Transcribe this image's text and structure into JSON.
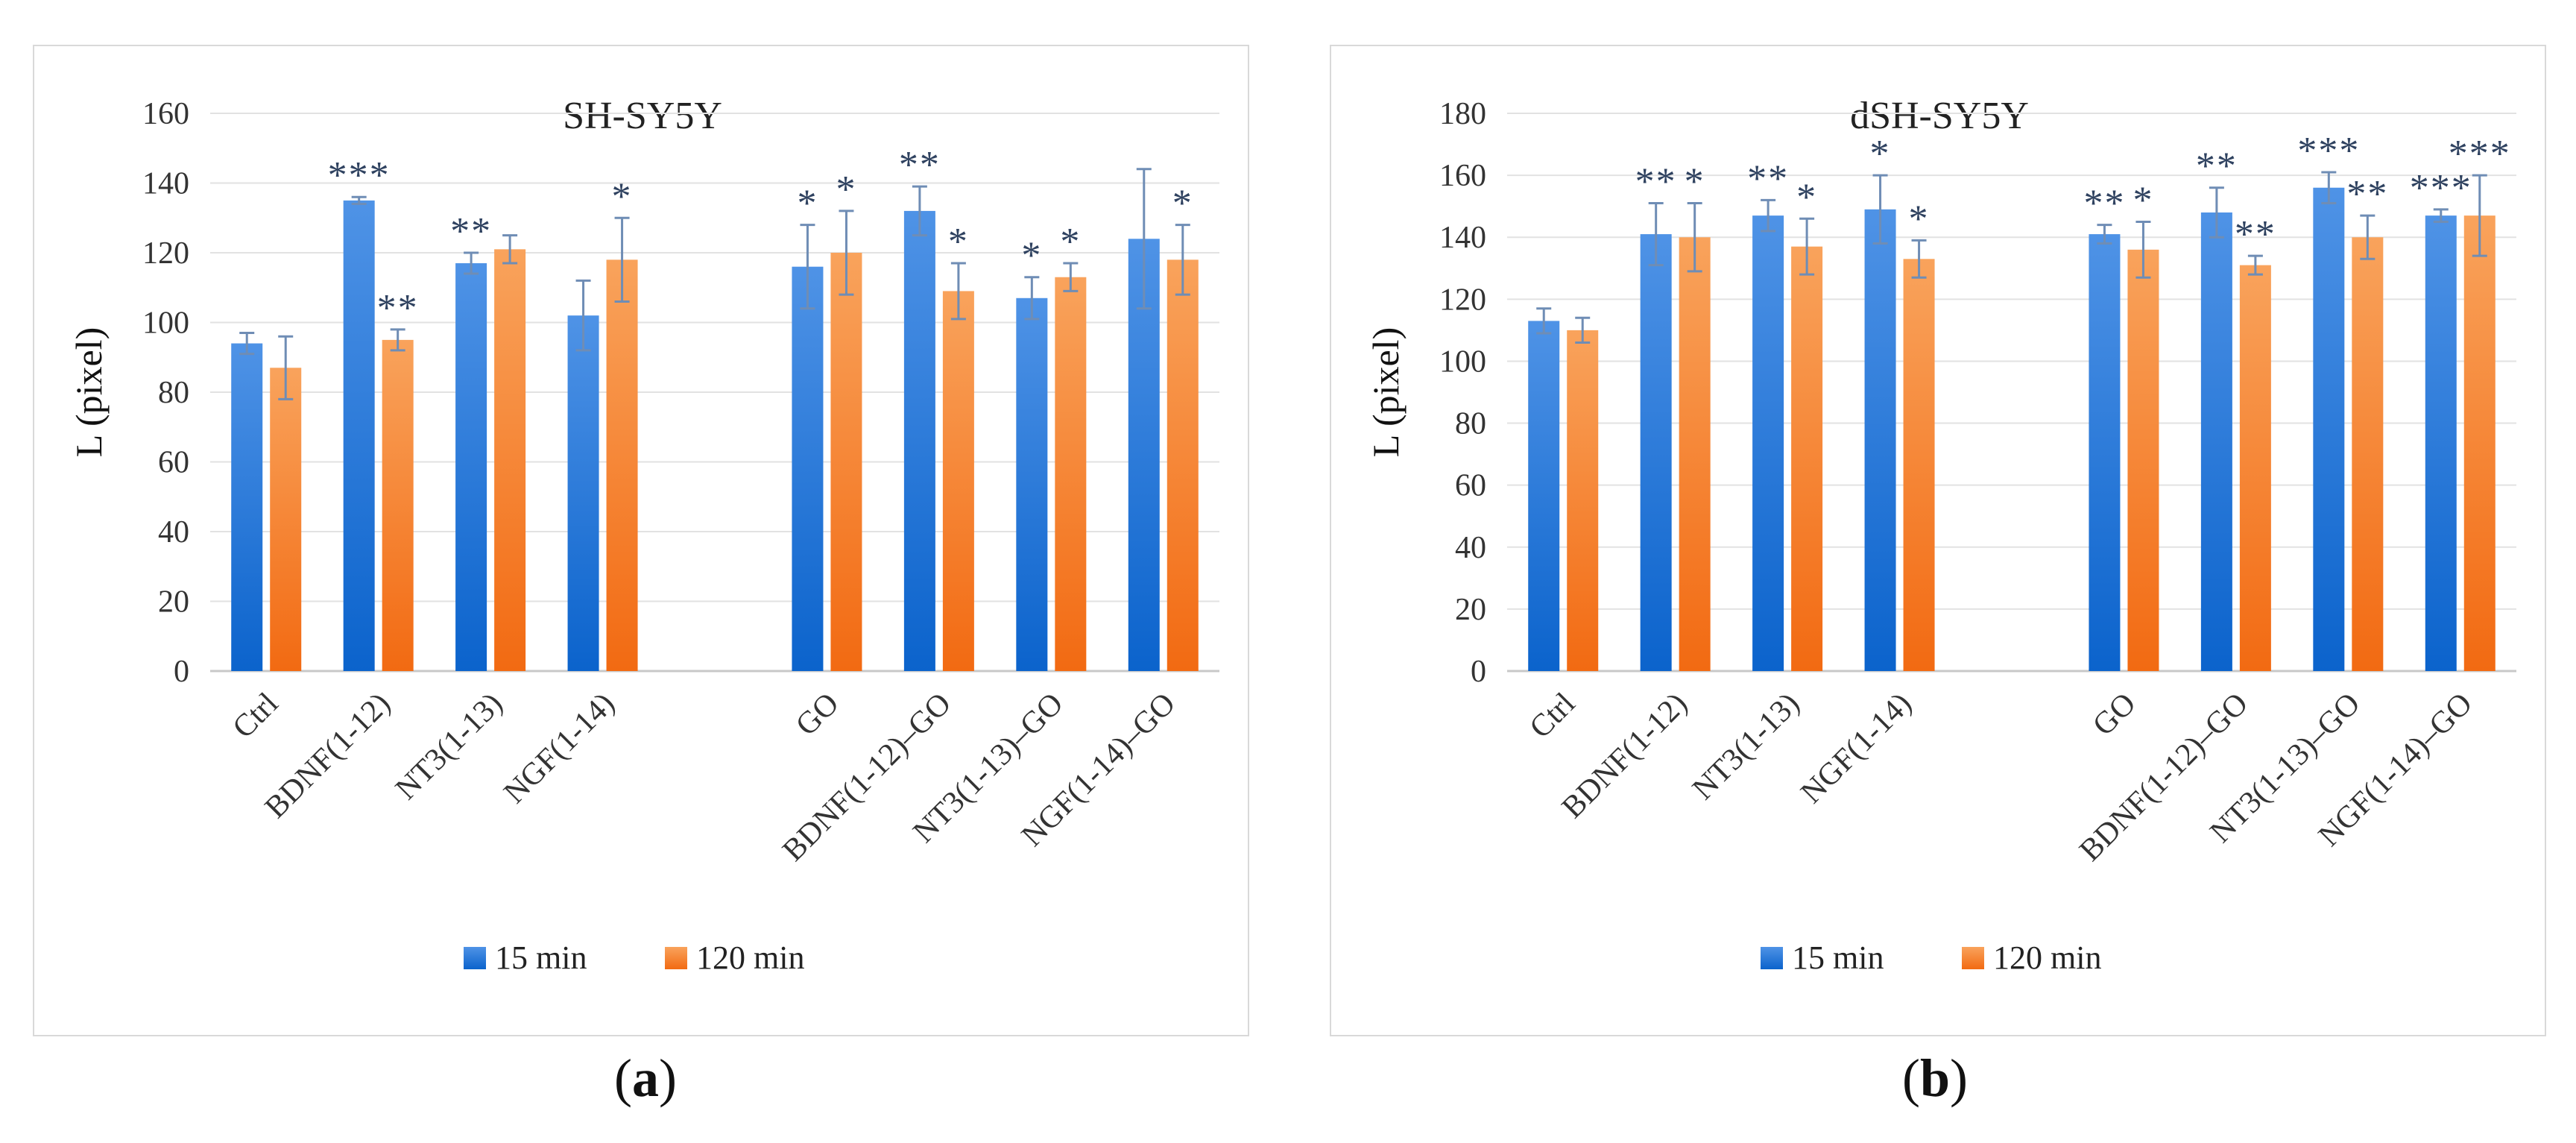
{
  "chart_data": [
    {
      "type": "bar",
      "panel_label": "a",
      "title": "SH-SY5Y",
      "ylabel": "L (pixel)",
      "xlabel": "",
      "ylim": [
        0,
        160
      ],
      "yticks": [
        0,
        20,
        40,
        60,
        80,
        100,
        120,
        140,
        160
      ],
      "grid": true,
      "legend_position": "bottom",
      "categories": [
        "Ctrl",
        "BDNF(1-12)",
        "NT3(1-13)",
        "NGF(1-14)",
        "GO",
        "BDNF(1-12)–GO",
        "NT3(1-13)–GO",
        "NGF(1-14)–GO"
      ],
      "series": [
        {
          "name": "15 min",
          "color": "#1f6fd6",
          "values": [
            94,
            135,
            117,
            102,
            116,
            132,
            107,
            124
          ],
          "errors": [
            3,
            1,
            3,
            10,
            12,
            7,
            6,
            20
          ],
          "significance": [
            "",
            "***",
            "**",
            "",
            "*",
            "**",
            "*",
            ""
          ]
        },
        {
          "name": "120 min",
          "color": "#f47a20",
          "values": [
            87,
            95,
            121,
            118,
            120,
            109,
            113,
            118
          ],
          "errors": [
            9,
            3,
            4,
            12,
            12,
            8,
            4,
            10
          ],
          "significance": [
            "",
            "**",
            "",
            "*",
            "*",
            "*",
            "*",
            "*"
          ]
        }
      ]
    },
    {
      "type": "bar",
      "panel_label": "b",
      "title": "dSH-SY5Y",
      "ylabel": "L (pixel)",
      "xlabel": "",
      "ylim": [
        0,
        180
      ],
      "yticks": [
        0,
        20,
        40,
        60,
        80,
        100,
        120,
        140,
        160,
        180
      ],
      "grid": true,
      "legend_position": "bottom",
      "categories": [
        "Ctrl",
        "BDNF(1-12)",
        "NT3(1-13)",
        "NGF(1-14)",
        "GO",
        "BDNF(1-12)–GO",
        "NT3(1-13)–GO",
        "NGF(1-14)–GO"
      ],
      "series": [
        {
          "name": "15 min",
          "color": "#1f6fd6",
          "values": [
            113,
            141,
            147,
            149,
            141,
            148,
            156,
            147
          ],
          "errors": [
            4,
            10,
            5,
            11,
            3,
            8,
            5,
            2
          ],
          "significance": [
            "",
            "**",
            "**",
            "*",
            "**",
            "**",
            "***",
            "***"
          ]
        },
        {
          "name": "120 min",
          "color": "#f47a20",
          "values": [
            110,
            140,
            137,
            133,
            136,
            131,
            140,
            147
          ],
          "errors": [
            4,
            11,
            9,
            6,
            9,
            3,
            7,
            13
          ],
          "significance": [
            "",
            "*",
            "*",
            "*",
            "*",
            "**",
            "**",
            "***"
          ]
        }
      ]
    }
  ]
}
